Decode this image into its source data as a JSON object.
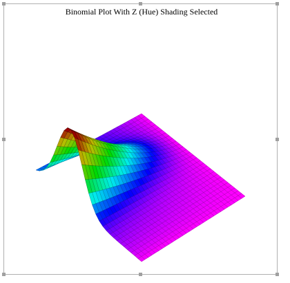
{
  "chart": {
    "title": "Binomial Plot With Z (Hue) Shading Selected"
  }
}
